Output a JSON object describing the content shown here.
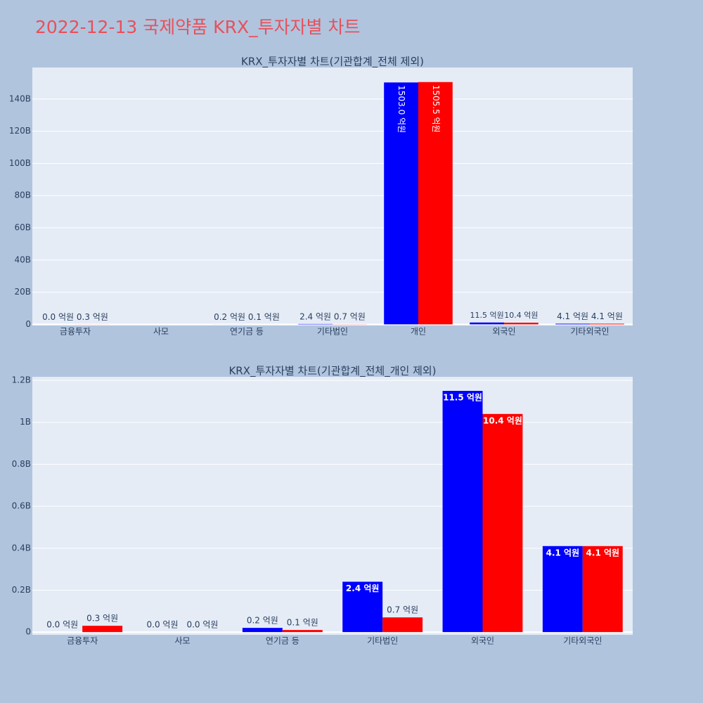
{
  "title": "2022-12-13 국제약품 KRX_투자자별 차트",
  "chart_data": [
    {
      "type": "bar",
      "title": "KRX_투자자별 차트(기관합계_전체 제외)",
      "categories": [
        "금융투자",
        "사모",
        "연기금 등",
        "기타법인",
        "개인",
        "외국인",
        "기타외국인"
      ],
      "series": [
        {
          "color": "#0000ff",
          "values": [
            0.0,
            0,
            0.02,
            0.24,
            150.3,
            1.15,
            0.41
          ],
          "value_labels": [
            "0.0 억원",
            null,
            "0.2 억원",
            "2.4 억원",
            "1503.0 억원",
            "11.5 억원",
            "4.1 억원"
          ]
        },
        {
          "color": "#ff0000",
          "values": [
            0.03,
            0,
            0.01,
            0.07,
            150.55,
            1.04,
            0.41
          ],
          "value_labels": [
            "0.3 억원",
            null,
            "0.1 억원",
            "0.7 억원",
            "1505.5 억원",
            "10.4 억원",
            "4.1 억원"
          ]
        }
      ],
      "ylim": [
        -0.7,
        159.6
      ],
      "yticks": [
        0,
        {
          "value": 20,
          "label": "20B"
        },
        {
          "value": 40,
          "label": "40B"
        },
        {
          "value": 60,
          "label": "60B"
        },
        {
          "value": 80,
          "label": "80B"
        },
        {
          "value": 100,
          "label": "100B"
        },
        {
          "value": 120,
          "label": "120B"
        },
        {
          "value": 140,
          "label": "140B"
        }
      ],
      "grid": true
    },
    {
      "type": "bar",
      "title": "KRX_투자자별 차트(기관합계_전체_개인 제외)",
      "categories": [
        "금융투자",
        "사모",
        "연기금 등",
        "기타법인",
        "외국인",
        "기타외국인"
      ],
      "series": [
        {
          "color": "#0000ff",
          "values": [
            0.0,
            0.0,
            0.02,
            0.24,
            1.15,
            0.41
          ],
          "value_labels": [
            "0.0 억원",
            "0.0 억원",
            "0.2 억원",
            "2.4 억원",
            "11.5 억원",
            "4.1 억원"
          ]
        },
        {
          "color": "#ff0000",
          "values": [
            0.03,
            0.0,
            0.01,
            0.07,
            1.04,
            0.41
          ],
          "value_labels": [
            "0.3 억원",
            "0.0 억원",
            "0.1 억원",
            "0.7 억원",
            "10.4 억원",
            "4.1 억원"
          ]
        }
      ],
      "ylim": [
        -0.013,
        1.217
      ],
      "yticks": [
        0,
        {
          "value": 0.2,
          "label": "0.2B"
        },
        {
          "value": 0.4,
          "label": "0.4B"
        },
        {
          "value": 0.6,
          "label": "0.6B"
        },
        {
          "value": 0.8,
          "label": "0.8B"
        },
        {
          "value": 1,
          "label": "1B"
        },
        {
          "value": 1.2,
          "label": "1.2B"
        }
      ],
      "grid": true
    }
  ]
}
